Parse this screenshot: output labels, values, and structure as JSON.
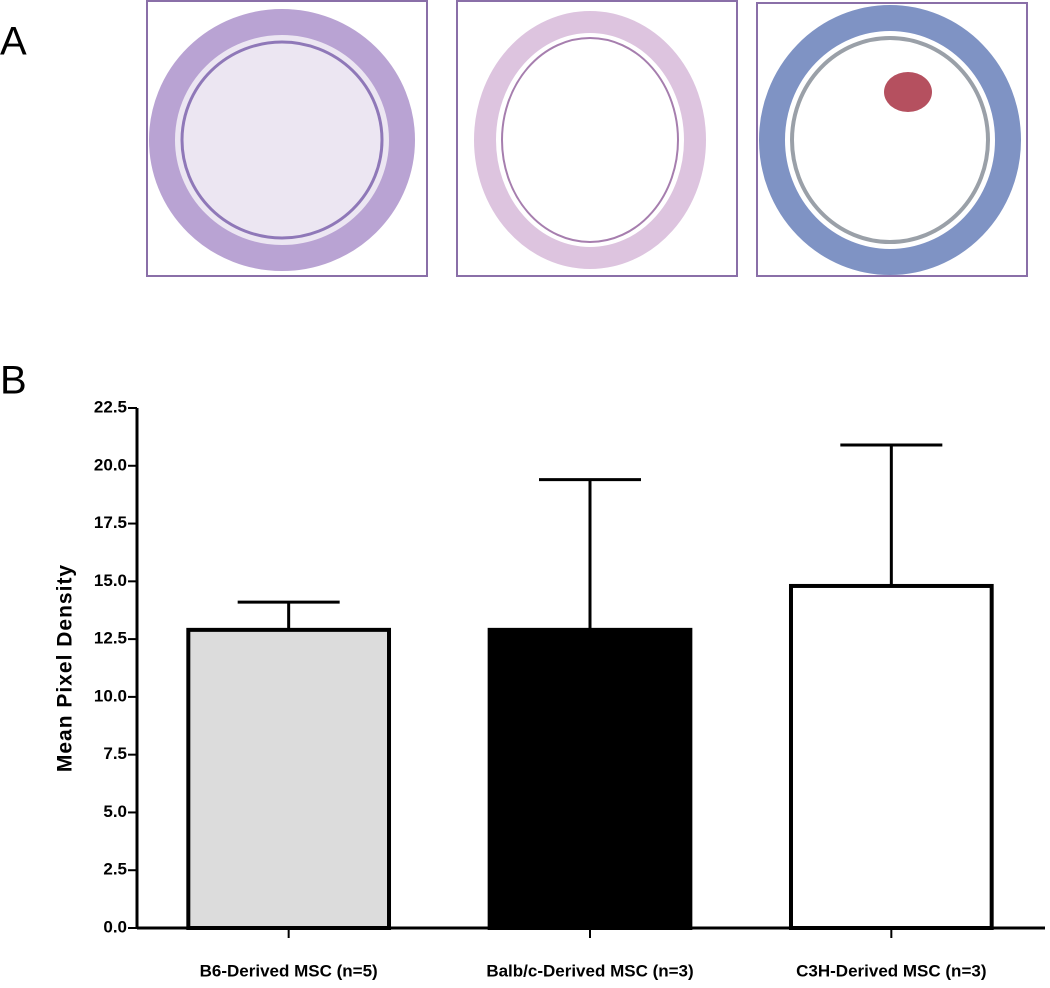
{
  "panel_labels": [
    "A",
    "B"
  ],
  "chart_data": {
    "type": "bar",
    "y_label": "Mean Pixel Density",
    "categories": [
      "B6-Derived MSC (n=5)",
      "Balb/c-Derived MSC (n=3)",
      "C3H-Derived MSC (n=3)"
    ],
    "values": [
      12.9,
      12.9,
      14.8
    ],
    "errors": [
      1.2,
      6.5,
      6.1
    ],
    "colors": [
      "#dcdcdc",
      "#000000",
      "#ffffff"
    ],
    "ylim": [
      0,
      22.5
    ],
    "yticks": [
      {
        "value": 0,
        "label": "0.0"
      },
      2.5,
      {
        "value": 5,
        "label": "5.0"
      },
      7.5,
      {
        "value": 10,
        "label": "10.0"
      },
      12.5,
      {
        "value": 15,
        "label": "15.0"
      },
      17.5,
      {
        "value": 20,
        "label": "20.0"
      },
      22.5
    ]
  }
}
